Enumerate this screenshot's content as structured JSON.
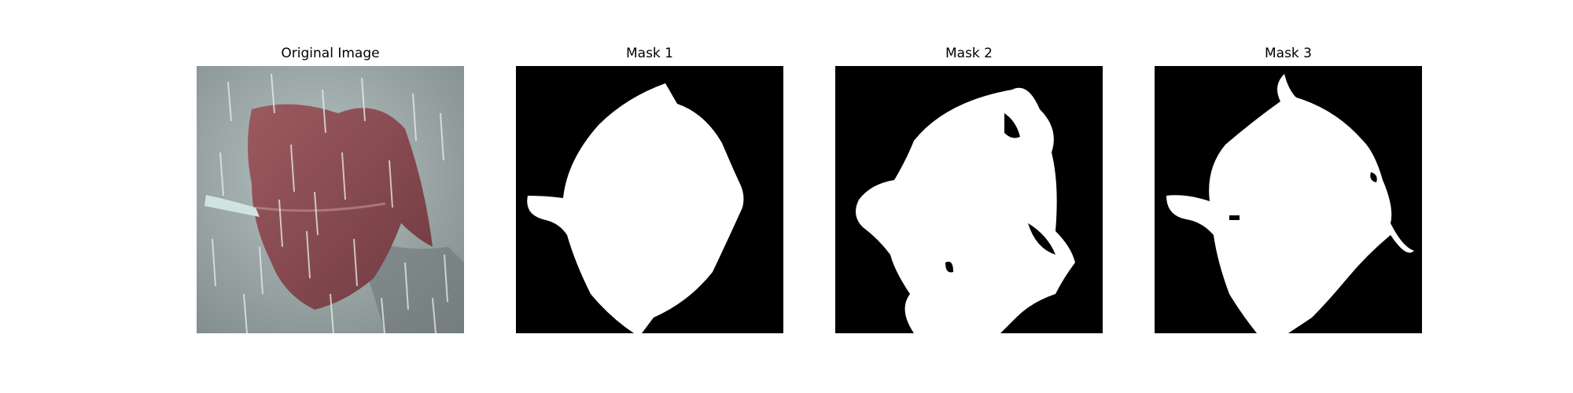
{
  "panels": [
    {
      "title": "Original Image"
    },
    {
      "title": "Mask 1"
    },
    {
      "title": "Mask 2"
    },
    {
      "title": "Mask 3"
    }
  ],
  "colors": {
    "background": "#ffffff",
    "mask_background": "#000000",
    "mask_foreground": "#ffffff",
    "photo_ground": "#9aa3a2",
    "leaf": "#8a4a4f",
    "stem": "#cfe3e2"
  }
}
